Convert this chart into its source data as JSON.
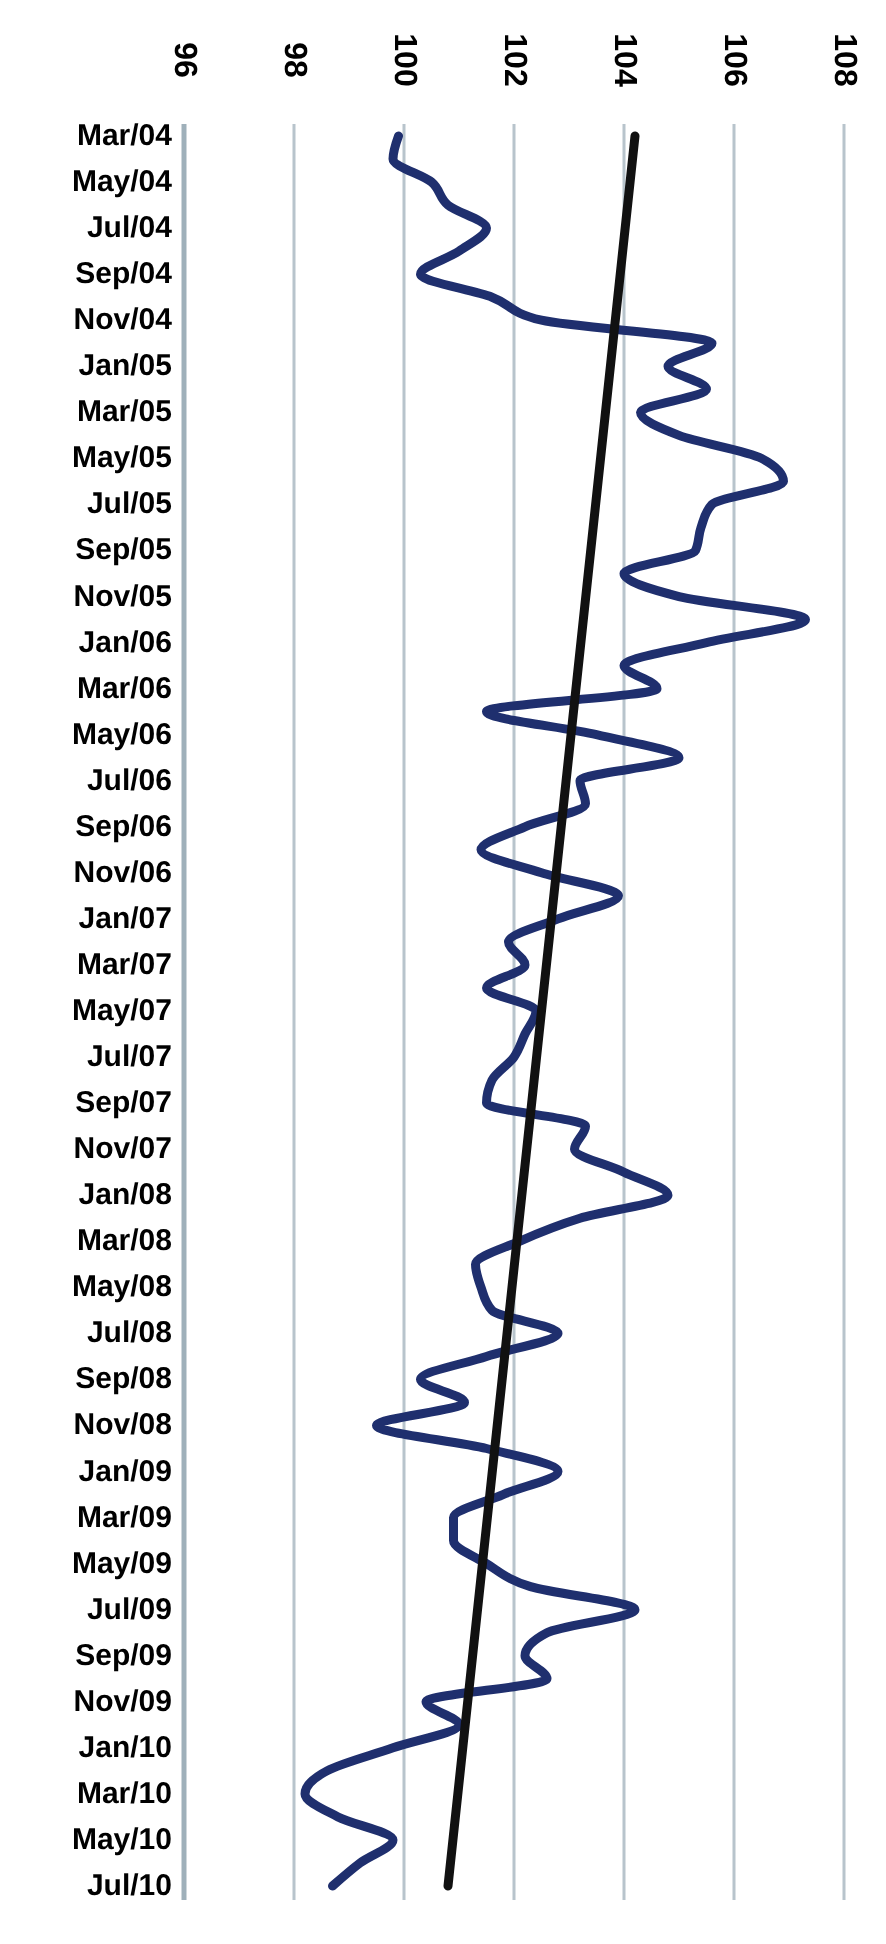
{
  "chart_data": {
    "type": "line",
    "orientation": "horizontal",
    "categories": [
      "Mar/04",
      null,
      "May/04",
      null,
      "Jul/04",
      null,
      "Sep/04",
      null,
      "Nov/04",
      null,
      "Jan/05",
      null,
      "Mar/05",
      null,
      "May/05",
      null,
      "Jul/05",
      null,
      "Sep/05",
      null,
      "Nov/05",
      null,
      "Jan/06",
      null,
      "Mar/06",
      null,
      "May/06",
      null,
      "Jul/06",
      null,
      "Sep/06",
      null,
      "Nov/06",
      null,
      "Jan/07",
      null,
      "Mar/07",
      null,
      "May/07",
      null,
      "Jul/07",
      null,
      "Sep/07",
      null,
      "Nov/07",
      null,
      "Jan/08",
      null,
      "Mar/08",
      null,
      "May/08",
      null,
      "Jul/08",
      null,
      "Sep/08",
      null,
      "Nov/08",
      null,
      "Jan/09",
      null,
      "Mar/09",
      null,
      "May/09",
      null,
      "Jul/09",
      null,
      "Sep/09",
      null,
      "Nov/09",
      null,
      "Jan/10",
      null,
      "Mar/10",
      null,
      "May/10",
      null,
      "Jul/10"
    ],
    "series": [
      {
        "color": "#1f2f6e",
        "values": [
          99.9,
          99.8,
          100.5,
          100.8,
          101.5,
          101.0,
          100.3,
          101.6,
          102.5,
          105.6,
          104.8,
          105.5,
          104.3,
          105.0,
          106.5,
          106.9,
          105.6,
          105.4,
          105.3,
          104.0,
          105.0,
          107.3,
          105.5,
          104.0,
          104.6,
          101.5,
          103.5,
          105.0,
          103.2,
          103.3,
          102.2,
          101.4,
          102.5,
          103.9,
          102.8,
          101.9,
          102.2,
          101.5,
          102.4,
          102.2,
          102.0,
          101.6,
          101.5,
          103.3,
          103.1,
          104.0,
          104.8,
          103.2,
          102.1,
          101.3,
          101.4,
          101.6,
          102.8,
          101.5,
          100.3,
          101.1,
          99.5,
          101.5,
          102.8,
          101.8,
          100.9,
          100.9,
          101.5,
          102.3,
          104.2,
          102.6,
          102.2,
          102.6,
          100.4,
          101.0,
          99.8,
          98.6,
          98.2,
          98.8,
          99.8,
          99.2,
          98.7
        ]
      },
      {
        "type": "line",
        "color": "#111111",
        "x": [
          "Mar/04",
          "Jul/10"
        ],
        "values": [
          104.2,
          100.8
        ]
      }
    ],
    "xlim": [
      96,
      108
    ],
    "xticks": [
      96,
      98,
      100,
      102,
      104,
      106,
      108
    ],
    "grid": "x",
    "marker": "none",
    "line_style": "solid"
  }
}
